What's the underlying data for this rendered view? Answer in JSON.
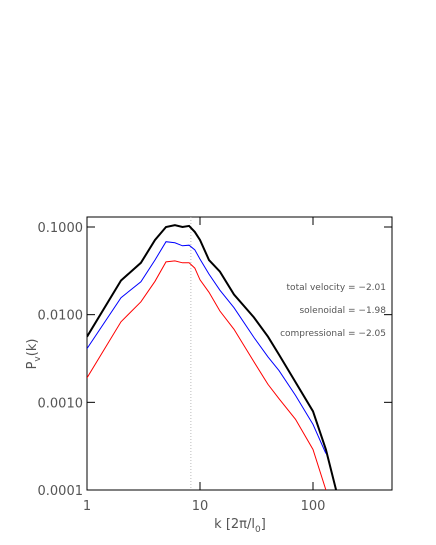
{
  "chart_data": {
    "type": "line",
    "x": [
      1,
      2,
      3,
      4,
      5,
      6,
      7,
      8,
      9,
      10,
      12,
      15,
      20,
      30,
      40,
      50,
      70,
      100,
      130,
      160
    ],
    "series": [
      {
        "color": "#000000",
        "values": [
          0.0056,
          0.0245,
          0.039,
          0.071,
          0.1,
          0.105,
          0.1,
          0.103,
          0.088,
          0.071,
          0.042,
          0.031,
          0.017,
          0.0093,
          0.0056,
          0.0035,
          0.0017,
          0.00079,
          0.00029,
          0.0001
        ]
      },
      {
        "color": "#0000ff",
        "values": [
          0.0041,
          0.0156,
          0.0237,
          0.042,
          0.068,
          0.066,
          0.061,
          0.062,
          0.055,
          0.043,
          0.029,
          0.019,
          0.012,
          0.0055,
          0.0033,
          0.0023,
          0.0012,
          0.00056,
          0.00026,
          null
        ]
      },
      {
        "color": "#ff0000",
        "values": [
          0.0019,
          0.0083,
          0.014,
          0.024,
          0.04,
          0.041,
          0.039,
          0.039,
          0.034,
          0.025,
          0.018,
          0.011,
          0.0068,
          0.0029,
          0.0016,
          0.0011,
          0.00064,
          0.00029,
          0.0001,
          null
        ]
      }
    ],
    "xlim": [
      1,
      500
    ],
    "ylim": [
      0.0001,
      0.13
    ],
    "xticks": [
      1,
      10,
      100
    ],
    "yticks": [
      {
        "value": 0.1,
        "label": "0.1000"
      },
      {
        "value": 0.01,
        "label": "0.0100"
      },
      {
        "value": 0.001,
        "label": "0.0010"
      },
      {
        "value": 0.0001,
        "label": "0.0001"
      }
    ],
    "log_x": true,
    "log_y": true,
    "reference_x": 8.3,
    "xlabel": {
      "main": "k  [2π/l",
      "sub": "0",
      "end": "]"
    },
    "ylabel": {
      "main": "P",
      "sub": "v",
      "end": "(k)"
    },
    "annotations": [
      "total velocity = −2.01",
      "solenoidal = −1.98",
      "compressional = −2.05"
    ]
  }
}
